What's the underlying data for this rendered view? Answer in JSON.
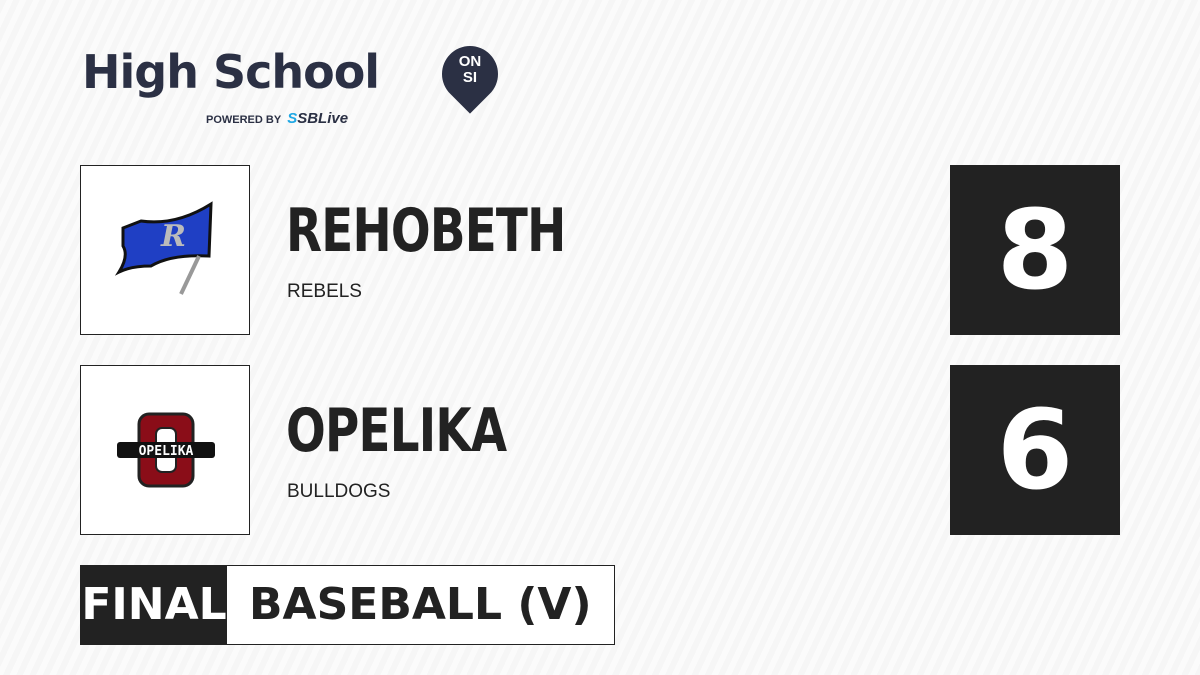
{
  "brand": {
    "title": "High School",
    "badge_top": "ON",
    "badge_bottom": "SI",
    "powered_by": "POWERED BY",
    "partner_prefix": "S",
    "partner": "SBLive"
  },
  "teams": [
    {
      "name": "REHOBETH",
      "mascot": "REBELS",
      "score": "8",
      "logo_color": "#1f3fc4"
    },
    {
      "name": "OPELIKA",
      "mascot": "BULLDOGS",
      "score": "6",
      "logo_text": "OPELIKA",
      "logo_color": "#8a0d18"
    }
  ],
  "status": {
    "state": "FINAL",
    "sport": "BASEBALL (V)"
  }
}
